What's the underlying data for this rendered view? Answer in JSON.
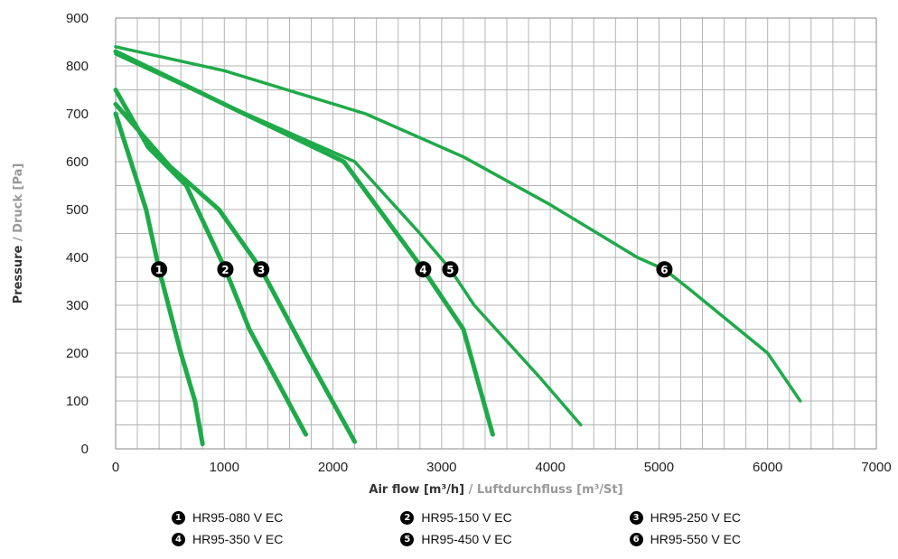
{
  "chart_data": {
    "type": "line",
    "title": "",
    "xlabel": "Air flow [m³/h]",
    "xlabel_alt": " / Luftdurchfluss [m³/St]",
    "ylabel": "Pressure",
    "ylabel_alt": " / Druck [Pa]",
    "xlim": [
      0,
      7000
    ],
    "ylim": [
      0,
      900
    ],
    "x_ticks": [
      0,
      1000,
      2000,
      3000,
      4000,
      5000,
      6000,
      7000
    ],
    "y_ticks": [
      0,
      100,
      200,
      300,
      400,
      500,
      600,
      700,
      800,
      900
    ],
    "grid": true,
    "legend_position": "bottom",
    "colors": {
      "line": "#1faa4a",
      "grid": "#b4b4b4",
      "marker": "#000000",
      "label_primary": "#333333",
      "label_secondary": "#999999"
    },
    "series": [
      {
        "id": "1",
        "name": "HR95-080 V EC",
        "marker": {
          "x": 400,
          "y": 375
        },
        "points": [
          [
            0,
            700
          ],
          [
            280,
            500
          ],
          [
            400,
            375
          ],
          [
            600,
            200
          ],
          [
            730,
            100
          ],
          [
            800,
            10
          ]
        ]
      },
      {
        "id": "2",
        "name": "HR95-150 V EC",
        "marker": {
          "x": 1010,
          "y": 375
        },
        "points": [
          [
            0,
            750
          ],
          [
            300,
            630
          ],
          [
            650,
            550
          ],
          [
            1010,
            375
          ],
          [
            1230,
            250
          ],
          [
            1750,
            30
          ]
        ]
      },
      {
        "id": "3",
        "name": "HR95-250 V EC",
        "marker": {
          "x": 1340,
          "y": 375
        },
        "points": [
          [
            0,
            720
          ],
          [
            500,
            590
          ],
          [
            950,
            500
          ],
          [
            1340,
            375
          ],
          [
            1750,
            200
          ],
          [
            2200,
            15
          ]
        ]
      },
      {
        "id": "4",
        "name": "HR95-350 V EC",
        "marker": {
          "x": 2830,
          "y": 375
        },
        "points": [
          [
            0,
            830
          ],
          [
            1000,
            720
          ],
          [
            2100,
            600
          ],
          [
            2830,
            375
          ],
          [
            3200,
            250
          ],
          [
            3470,
            30
          ]
        ]
      },
      {
        "id": "5",
        "name": "HR95-450 V EC",
        "marker": {
          "x": 3080,
          "y": 375
        },
        "points": [
          [
            0,
            825
          ],
          [
            1000,
            720
          ],
          [
            2200,
            600
          ],
          [
            2800,
            450
          ],
          [
            3080,
            375
          ],
          [
            3300,
            300
          ],
          [
            3900,
            150
          ],
          [
            4280,
            50
          ]
        ]
      },
      {
        "id": "6",
        "name": "HR95-550 V EC",
        "marker": {
          "x": 5050,
          "y": 375
        },
        "points": [
          [
            0,
            840
          ],
          [
            1000,
            790
          ],
          [
            2300,
            700
          ],
          [
            3200,
            610
          ],
          [
            4000,
            510
          ],
          [
            4800,
            400
          ],
          [
            5050,
            375
          ],
          [
            5300,
            330
          ],
          [
            6000,
            200
          ],
          [
            6300,
            100
          ]
        ]
      }
    ]
  }
}
